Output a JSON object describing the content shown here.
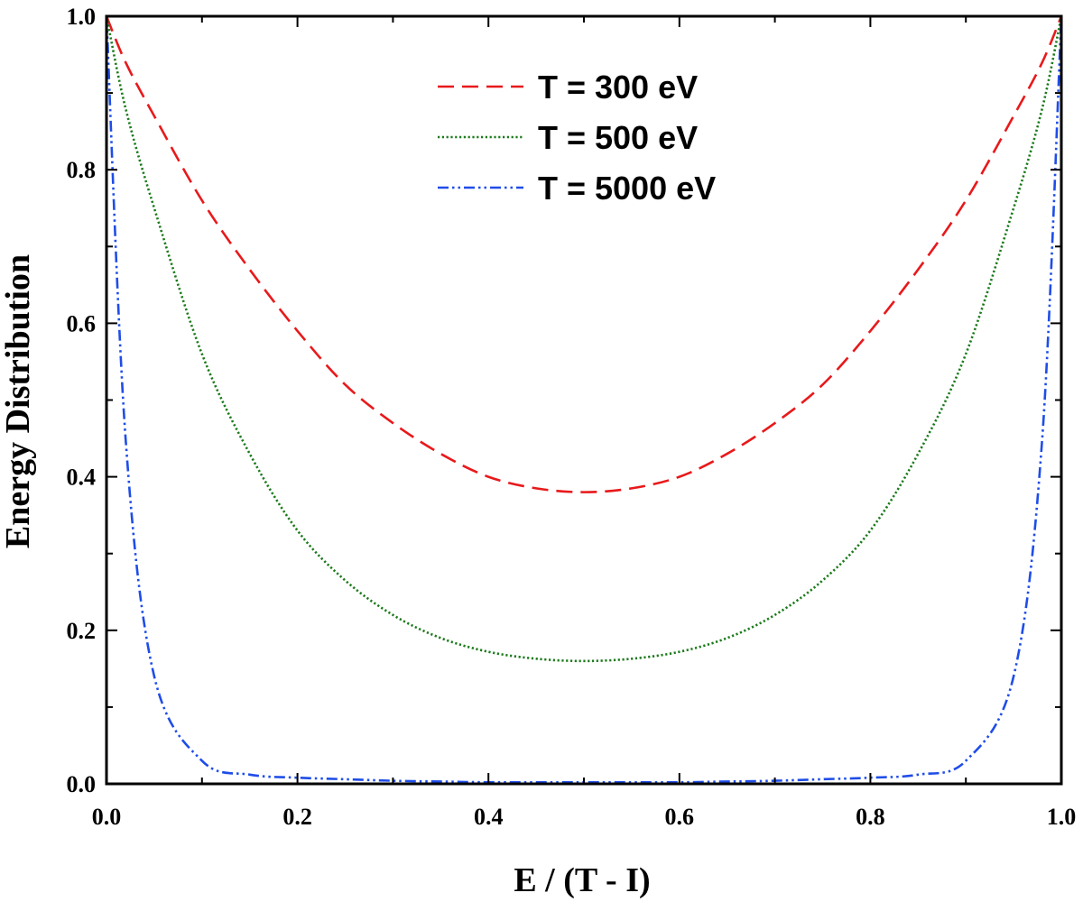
{
  "chart_data": {
    "type": "line",
    "title": "",
    "xlabel": "E / (T - I)",
    "ylabel": "Energy Distribution",
    "xlim": [
      0.0,
      1.0
    ],
    "ylim": [
      0.0,
      1.0
    ],
    "grid": false,
    "legend_position": "top-center",
    "x_ticks": [
      {
        "value": 0.0,
        "label": "0.0"
      },
      {
        "value": 0.2,
        "label": "0.2"
      },
      {
        "value": 0.4,
        "label": "0.4"
      },
      {
        "value": 0.6,
        "label": "0.6"
      },
      {
        "value": 0.8,
        "label": "0.8"
      },
      {
        "value": 1.0,
        "label": "1.0"
      }
    ],
    "y_ticks": [
      {
        "value": 0.0,
        "label": "0.0"
      },
      {
        "value": 0.2,
        "label": "0.2"
      },
      {
        "value": 0.4,
        "label": "0.4"
      },
      {
        "value": 0.6,
        "label": "0.6"
      },
      {
        "value": 0.8,
        "label": "0.8"
      },
      {
        "value": 1.0,
        "label": "1.0"
      }
    ],
    "x": [
      0.0,
      0.02,
      0.05,
      0.1,
      0.15,
      0.2,
      0.25,
      0.3,
      0.35,
      0.4,
      0.45,
      0.5,
      0.55,
      0.6,
      0.65,
      0.7,
      0.75,
      0.8,
      0.85,
      0.9,
      0.95,
      0.98,
      1.0
    ],
    "series": [
      {
        "name": "T = 300 eV",
        "color": "#e8191b",
        "dash": "dashed",
        "values": [
          1.0,
          0.94,
          0.87,
          0.76,
          0.67,
          0.59,
          0.52,
          0.47,
          0.43,
          0.4,
          0.385,
          0.38,
          0.385,
          0.4,
          0.43,
          0.47,
          0.52,
          0.59,
          0.67,
          0.76,
          0.87,
          0.94,
          1.0
        ]
      },
      {
        "name": "T = 500 eV",
        "color": "#1b7a1b",
        "dash": "dotted",
        "values": [
          1.0,
          0.88,
          0.75,
          0.56,
          0.43,
          0.33,
          0.265,
          0.22,
          0.19,
          0.172,
          0.163,
          0.16,
          0.163,
          0.172,
          0.19,
          0.22,
          0.265,
          0.33,
          0.43,
          0.56,
          0.75,
          0.88,
          1.0
        ]
      },
      {
        "name": "T = 5000 eV",
        "color": "#1f4de8",
        "dash": "dash-dot-dot",
        "values": [
          1.0,
          0.45,
          0.14,
          0.03,
          0.012,
          0.008,
          0.006,
          0.004,
          0.003,
          0.002,
          0.002,
          0.002,
          0.002,
          0.002,
          0.003,
          0.004,
          0.006,
          0.008,
          0.012,
          0.03,
          0.14,
          0.45,
          1.0
        ]
      }
    ]
  }
}
